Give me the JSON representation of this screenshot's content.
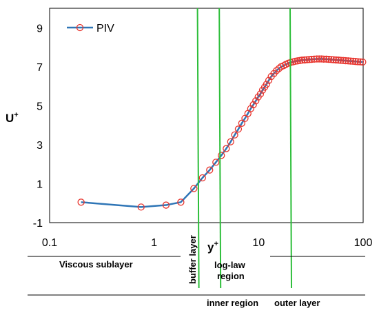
{
  "chart_data": {
    "type": "scatter",
    "xscale": "log",
    "xlim": [
      0.1,
      100
    ],
    "ylim": [
      -1,
      10
    ],
    "x_ticks": [
      "0.1",
      "1",
      "10",
      "100"
    ],
    "y_ticks": [
      "-1",
      "1",
      "3",
      "5",
      "7",
      "9"
    ],
    "xlabel": "y",
    "xlabel_sup": "+",
    "ylabel": "U",
    "ylabel_sup": "+",
    "legend": {
      "position": "top-left",
      "label": "PIV"
    },
    "colors": {
      "line": "#2E75B6",
      "marker": "#E8352E",
      "region_line": "#2DBE3A"
    },
    "series": [
      {
        "name": "PIV",
        "x": [
          0.2,
          0.75,
          1.3,
          1.8,
          2.4,
          2.9,
          3.4,
          3.9,
          4.4,
          4.9,
          5.4,
          5.9,
          6.4,
          6.9,
          7.4,
          7.9,
          8.4,
          8.9,
          9.4,
          9.9,
          10.4,
          10.9,
          11.4,
          11.9,
          12.5,
          13.2,
          14,
          14.8,
          15.6,
          16.4,
          17.3,
          18.2,
          19.2,
          20.2,
          21.3,
          22.4,
          23.6,
          24.8,
          26,
          27.5,
          29,
          30.5,
          32,
          34,
          36,
          38,
          40,
          42,
          44.5,
          47,
          49.5,
          52,
          55,
          58,
          61,
          64.5,
          68,
          72,
          76,
          80,
          84.5,
          89,
          94,
          99
        ],
        "y": [
          0.05,
          -0.2,
          -0.1,
          0.05,
          0.75,
          1.3,
          1.7,
          2.1,
          2.45,
          2.8,
          3.15,
          3.5,
          3.8,
          4.1,
          4.35,
          4.6,
          4.85,
          5.05,
          5.25,
          5.45,
          5.6,
          5.8,
          5.95,
          6.1,
          6.3,
          6.5,
          6.65,
          6.8,
          6.9,
          7.0,
          7.05,
          7.12,
          7.18,
          7.22,
          7.25,
          7.28,
          7.3,
          7.32,
          7.34,
          7.35,
          7.36,
          7.37,
          7.38,
          7.39,
          7.4,
          7.4,
          7.4,
          7.39,
          7.39,
          7.38,
          7.37,
          7.36,
          7.35,
          7.34,
          7.33,
          7.32,
          7.31,
          7.3,
          7.29,
          7.28,
          7.27,
          7.26,
          7.25,
          7.24
        ]
      }
    ],
    "region_boundaries": [
      {
        "name": "viscous-buffer",
        "x": 2.6
      },
      {
        "name": "buffer-loglaw",
        "x": 4.2
      },
      {
        "name": "loglaw-outer",
        "x": 20
      }
    ]
  },
  "regions": {
    "viscous": "Viscous sublayer",
    "buffer": "buffer layer",
    "loglaw_line1": "log-law",
    "loglaw_line2": "region",
    "inner": "inner region",
    "outer": "outer layer"
  }
}
